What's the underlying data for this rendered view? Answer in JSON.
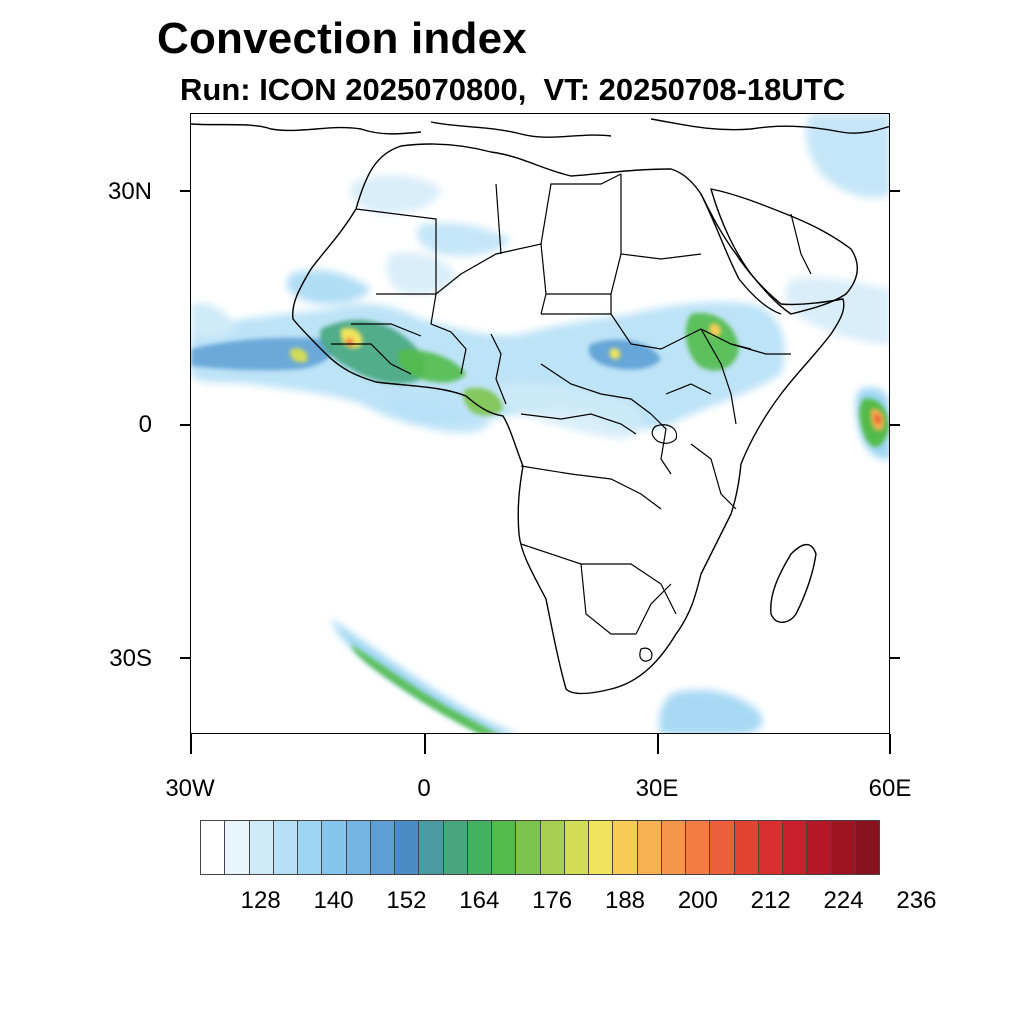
{
  "title": "Convection index",
  "subtitle": "Run: ICON 2025070800,  VT: 20250708-18UTC",
  "axes": {
    "lat_labels": [
      "30N",
      "0",
      "30S"
    ],
    "lon_labels": [
      "30W",
      "0",
      "30E",
      "60E"
    ]
  },
  "map_extent": {
    "lon_min": -30,
    "lon_max": 60,
    "lat_min": -40,
    "lat_max": 40
  },
  "colorbar": {
    "colors": [
      "#ffffff",
      "#e8f5fc",
      "#cfeaf8",
      "#b6e0f6",
      "#9ed5f3",
      "#86c6ec",
      "#75b4e3",
      "#5d9fd4",
      "#4a8cc4",
      "#4a9a9f",
      "#47a67e",
      "#44b15f",
      "#52bb4a",
      "#7dc44e",
      "#a7cf52",
      "#d2dd57",
      "#f0e45c",
      "#f8cc56",
      "#f7b150",
      "#f5964a",
      "#f27c44",
      "#ec5f3a",
      "#e34333",
      "#da2f2f",
      "#c9202b",
      "#b41826",
      "#9e1522",
      "#8a121e"
    ],
    "tick_labels": [
      "128",
      "140",
      "152",
      "164",
      "176",
      "188",
      "200",
      "212",
      "224",
      "236"
    ]
  }
}
